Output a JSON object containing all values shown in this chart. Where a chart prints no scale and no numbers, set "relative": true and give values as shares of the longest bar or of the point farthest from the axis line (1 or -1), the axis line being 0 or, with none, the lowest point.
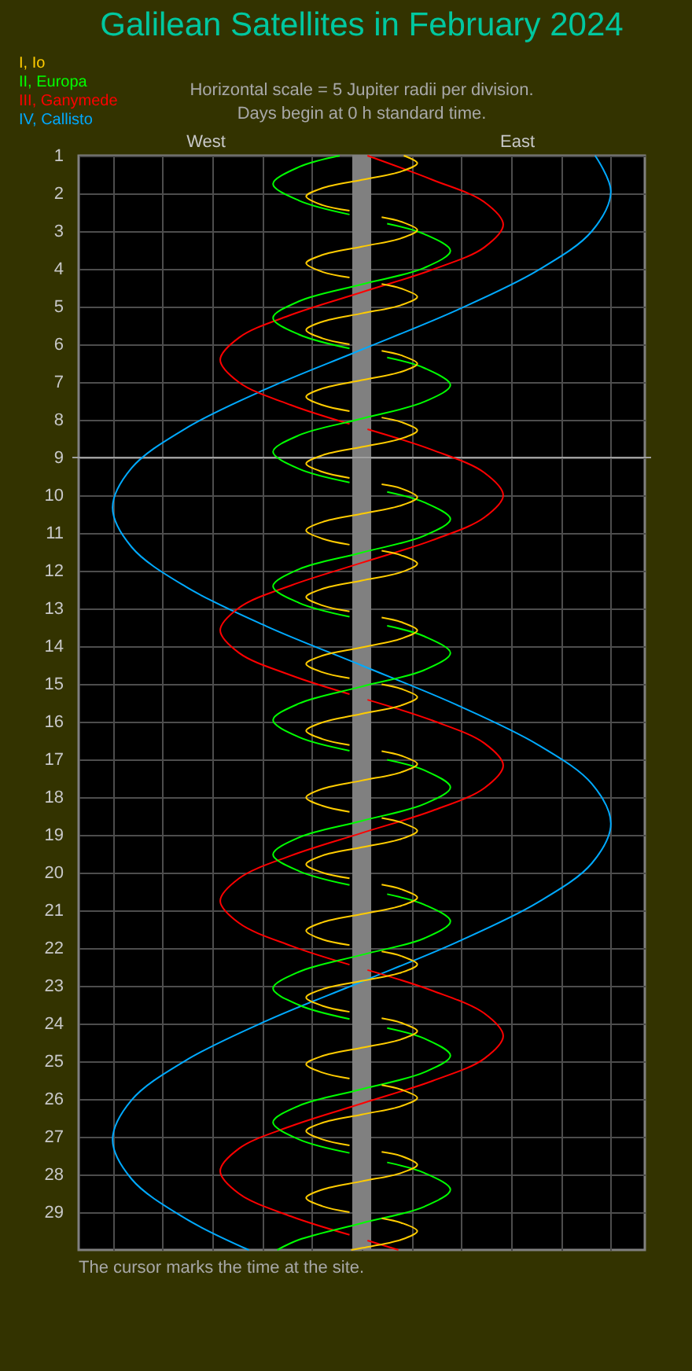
{
  "chart_data": {
    "type": "line",
    "orientation": "horizontal",
    "relative": true,
    "title": "Galilean Satellites in February 2024",
    "subtitle": "Horizontal scale = 5 Jupiter radii per division.\nDays begin at 0 h standard time.",
    "annotations": [
      "West",
      "East",
      "The cursor marks the time at the site."
    ],
    "grid": true,
    "line_style": "solid",
    "ylim": [
      30,
      1
    ],
    "yticks": [
      1,
      2,
      3,
      4,
      5,
      6,
      7,
      8,
      9,
      10,
      11,
      12,
      13,
      14,
      15,
      16,
      17,
      18,
      19,
      20,
      21,
      22,
      23,
      24,
      25,
      26,
      27,
      28,
      29
    ],
    "bands": [
      {
        "axis": "x",
        "from": -0.038,
        "to": 0.038,
        "color": "#808080"
      }
    ],
    "ref_lines": [
      {
        "axis": "y",
        "value": 9,
        "color": "#a0a0a0"
      }
    ],
    "series": [
      {
        "name": "I, Io",
        "color": "#ffcc00",
        "x": [
          1.0,
          1.2,
          1.42,
          1.64,
          1.86,
          2.08,
          2.31,
          2.46,
          null,
          2.63,
          2.75,
          2.97,
          3.19,
          3.41,
          3.63,
          3.85,
          4.08,
          4.23,
          null,
          4.4,
          4.52,
          4.74,
          4.96,
          5.18,
          5.4,
          5.62,
          5.84,
          6.0,
          null,
          6.17,
          6.29,
          6.51,
          6.73,
          6.95,
          7.17,
          7.39,
          7.61,
          7.77,
          null,
          7.94,
          8.06,
          8.28,
          8.5,
          8.72,
          8.94,
          9.16,
          9.38,
          9.54,
          null,
          9.71,
          9.82,
          10.05,
          10.27,
          10.49,
          10.71,
          10.93,
          11.15,
          11.31,
          null,
          11.47,
          11.59,
          11.81,
          12.04,
          12.26,
          12.48,
          12.7,
          12.92,
          13.08,
          null,
          13.24,
          13.36,
          13.58,
          13.8,
          14.03,
          14.25,
          14.47,
          14.69,
          14.85,
          null,
          15.01,
          15.13,
          15.35,
          15.57,
          15.79,
          16.02,
          16.24,
          16.46,
          16.62,
          null,
          16.78,
          16.9,
          17.12,
          17.34,
          17.56,
          17.78,
          18.01,
          18.23,
          18.39,
          null,
          18.55,
          18.67,
          18.89,
          19.11,
          19.33,
          19.55,
          19.78,
          20.0,
          20.15,
          null,
          20.32,
          20.44,
          20.66,
          20.88,
          21.1,
          21.32,
          21.54,
          21.77,
          21.92,
          null,
          22.09,
          22.21,
          22.43,
          22.65,
          22.87,
          23.09,
          23.31,
          23.53,
          23.69,
          null,
          23.86,
          23.98,
          24.2,
          24.42,
          24.64,
          24.86,
          25.08,
          25.3,
          25.46,
          null,
          25.63,
          25.75,
          25.97,
          26.19,
          26.41,
          26.63,
          26.85,
          27.07,
          27.23,
          null,
          27.4,
          27.51,
          27.74,
          27.96,
          28.18,
          28.4,
          28.62,
          28.84,
          29.0,
          null,
          29.16,
          29.28,
          29.5,
          29.73,
          29.95,
          30.0
        ],
        "values": [
          0.169,
          0.223,
          0.158,
          0,
          -0.158,
          -0.223,
          -0.158,
          -0.049,
          null,
          0.08,
          0.158,
          0.223,
          0.158,
          0,
          -0.158,
          -0.223,
          -0.158,
          -0.049,
          null,
          0.08,
          0.158,
          0.223,
          0.158,
          0,
          -0.158,
          -0.223,
          -0.158,
          -0.049,
          null,
          0.08,
          0.158,
          0.223,
          0.158,
          0,
          -0.158,
          -0.223,
          -0.158,
          -0.049,
          null,
          0.08,
          0.158,
          0.223,
          0.158,
          0,
          -0.158,
          -0.223,
          -0.158,
          -0.049,
          null,
          0.08,
          0.158,
          0.223,
          0.158,
          0,
          -0.158,
          -0.223,
          -0.158,
          -0.049,
          null,
          0.08,
          0.158,
          0.223,
          0.158,
          0,
          -0.158,
          -0.223,
          -0.158,
          -0.049,
          null,
          0.08,
          0.158,
          0.223,
          0.158,
          0,
          -0.158,
          -0.223,
          -0.158,
          -0.049,
          null,
          0.08,
          0.158,
          0.223,
          0.158,
          0,
          -0.158,
          -0.223,
          -0.158,
          -0.049,
          null,
          0.08,
          0.158,
          0.223,
          0.158,
          0,
          -0.158,
          -0.223,
          -0.158,
          -0.049,
          null,
          0.08,
          0.158,
          0.223,
          0.158,
          0,
          -0.158,
          -0.223,
          -0.158,
          -0.049,
          null,
          0.08,
          0.158,
          0.223,
          0.158,
          0,
          -0.158,
          -0.223,
          -0.158,
          -0.049,
          null,
          0.08,
          0.158,
          0.223,
          0.158,
          0,
          -0.158,
          -0.223,
          -0.158,
          -0.049,
          null,
          0.08,
          0.158,
          0.223,
          0.158,
          0,
          -0.158,
          -0.223,
          -0.158,
          -0.049,
          null,
          0.08,
          0.158,
          0.223,
          0.158,
          0,
          -0.158,
          -0.223,
          -0.158,
          -0.049,
          null,
          0.08,
          0.158,
          0.223,
          0.158,
          0,
          -0.158,
          -0.223,
          -0.158,
          -0.049,
          null,
          0.08,
          0.158,
          0.223,
          0.158,
          0,
          -0.042
        ]
      },
      {
        "name": "II, Europa",
        "color": "#00ff00",
        "x": [
          1.0,
          1.3,
          1.75,
          2.19,
          2.56,
          null,
          2.8,
          3.08,
          3.52,
          3.97,
          4.41,
          4.86,
          5.3,
          5.74,
          6.11,
          null,
          6.35,
          6.63,
          7.08,
          7.52,
          7.97,
          8.41,
          8.85,
          9.3,
          9.66,
          null,
          9.91,
          10.19,
          10.63,
          11.07,
          11.52,
          11.96,
          12.41,
          12.85,
          13.22,
          null,
          13.46,
          13.74,
          14.18,
          14.63,
          15.07,
          15.52,
          15.96,
          16.41,
          16.77,
          null,
          17.01,
          17.29,
          17.74,
          18.18,
          18.63,
          19.07,
          19.52,
          19.96,
          20.33,
          null,
          20.57,
          20.85,
          21.29,
          21.74,
          22.18,
          22.63,
          23.07,
          23.51,
          23.88,
          null,
          24.12,
          24.4,
          24.85,
          25.29,
          25.74,
          26.18,
          26.62,
          27.07,
          27.43,
          null,
          27.68,
          27.96,
          28.4,
          28.85,
          29.29,
          29.73,
          30.0
        ],
        "values": [
          -0.089,
          -0.252,
          -0.356,
          -0.252,
          -0.049,
          null,
          0.102,
          0.252,
          0.356,
          0.252,
          0,
          -0.252,
          -0.356,
          -0.252,
          -0.049,
          null,
          0.102,
          0.252,
          0.356,
          0.252,
          0,
          -0.252,
          -0.356,
          -0.252,
          -0.049,
          null,
          0.102,
          0.252,
          0.356,
          0.252,
          0,
          -0.252,
          -0.356,
          -0.252,
          -0.049,
          null,
          0.102,
          0.252,
          0.356,
          0.252,
          0,
          -0.252,
          -0.356,
          -0.252,
          -0.049,
          null,
          0.102,
          0.252,
          0.356,
          0.252,
          0,
          -0.252,
          -0.356,
          -0.252,
          -0.049,
          null,
          0.102,
          0.252,
          0.356,
          0.252,
          0,
          -0.252,
          -0.356,
          -0.252,
          -0.049,
          null,
          0.102,
          0.252,
          0.356,
          0.252,
          0,
          -0.252,
          -0.356,
          -0.252,
          -0.049,
          null,
          0.102,
          0.252,
          0.356,
          0.252,
          0,
          -0.252,
          -0.339
        ]
      },
      {
        "name": "III, Ganymede",
        "color": "#ff0000",
        "x": [
          1.0,
          1.64,
          2.23,
          2.83,
          3.43,
          4.02,
          4.62,
          5.22,
          5.82,
          6.41,
          7.01,
          7.61,
          8.11,
          null,
          8.25,
          8.8,
          9.4,
          10.0,
          10.59,
          11.19,
          11.79,
          12.39,
          12.98,
          13.58,
          14.18,
          14.77,
          15.27,
          null,
          15.42,
          15.97,
          16.57,
          17.16,
          17.76,
          18.36,
          18.95,
          19.55,
          20.15,
          20.75,
          21.34,
          21.94,
          22.44,
          null,
          22.58,
          23.13,
          23.73,
          24.33,
          24.93,
          25.52,
          26.12,
          26.72,
          27.31,
          27.91,
          28.51,
          29.11,
          29.6,
          null,
          29.75,
          30.0
        ],
        "values": [
          0.023,
          0.284,
          0.492,
          0.568,
          0.492,
          0.284,
          0,
          -0.284,
          -0.492,
          -0.568,
          -0.492,
          -0.284,
          -0.049,
          null,
          0.023,
          0.284,
          0.492,
          0.568,
          0.492,
          0.284,
          0,
          -0.284,
          -0.492,
          -0.568,
          -0.492,
          -0.284,
          -0.049,
          null,
          0.023,
          0.284,
          0.492,
          0.568,
          0.492,
          0.284,
          0,
          -0.284,
          -0.492,
          -0.568,
          -0.492,
          -0.284,
          -0.049,
          null,
          0.023,
          0.284,
          0.492,
          0.568,
          0.492,
          0.284,
          0,
          -0.284,
          -0.492,
          -0.568,
          -0.492,
          -0.284,
          -0.049,
          null,
          0.023,
          0.147
        ]
      },
      {
        "name": "IV, Callisto",
        "color": "#00aaff",
        "x": [
          1.0,
          1.95,
          3.0,
          4.04,
          5.09,
          6.14,
          7.18,
          8.23,
          9.28,
          10.33,
          11.37,
          12.42,
          13.47,
          14.51,
          15.56,
          16.61,
          17.65,
          18.7,
          19.75,
          20.79,
          21.84,
          22.89,
          23.93,
          24.98,
          26.03,
          27.08,
          28.12,
          29.17,
          30.0
        ],
        "values": [
          0.937,
          1,
          0.924,
          0.707,
          0.383,
          0,
          -0.383,
          -0.707,
          -0.924,
          -1,
          -0.924,
          -0.707,
          -0.383,
          0,
          0.383,
          0.707,
          0.924,
          1,
          0.924,
          0.707,
          0.383,
          0,
          -0.383,
          -0.707,
          -0.924,
          -1,
          -0.924,
          -0.707,
          -0.453
        ]
      }
    ]
  }
}
